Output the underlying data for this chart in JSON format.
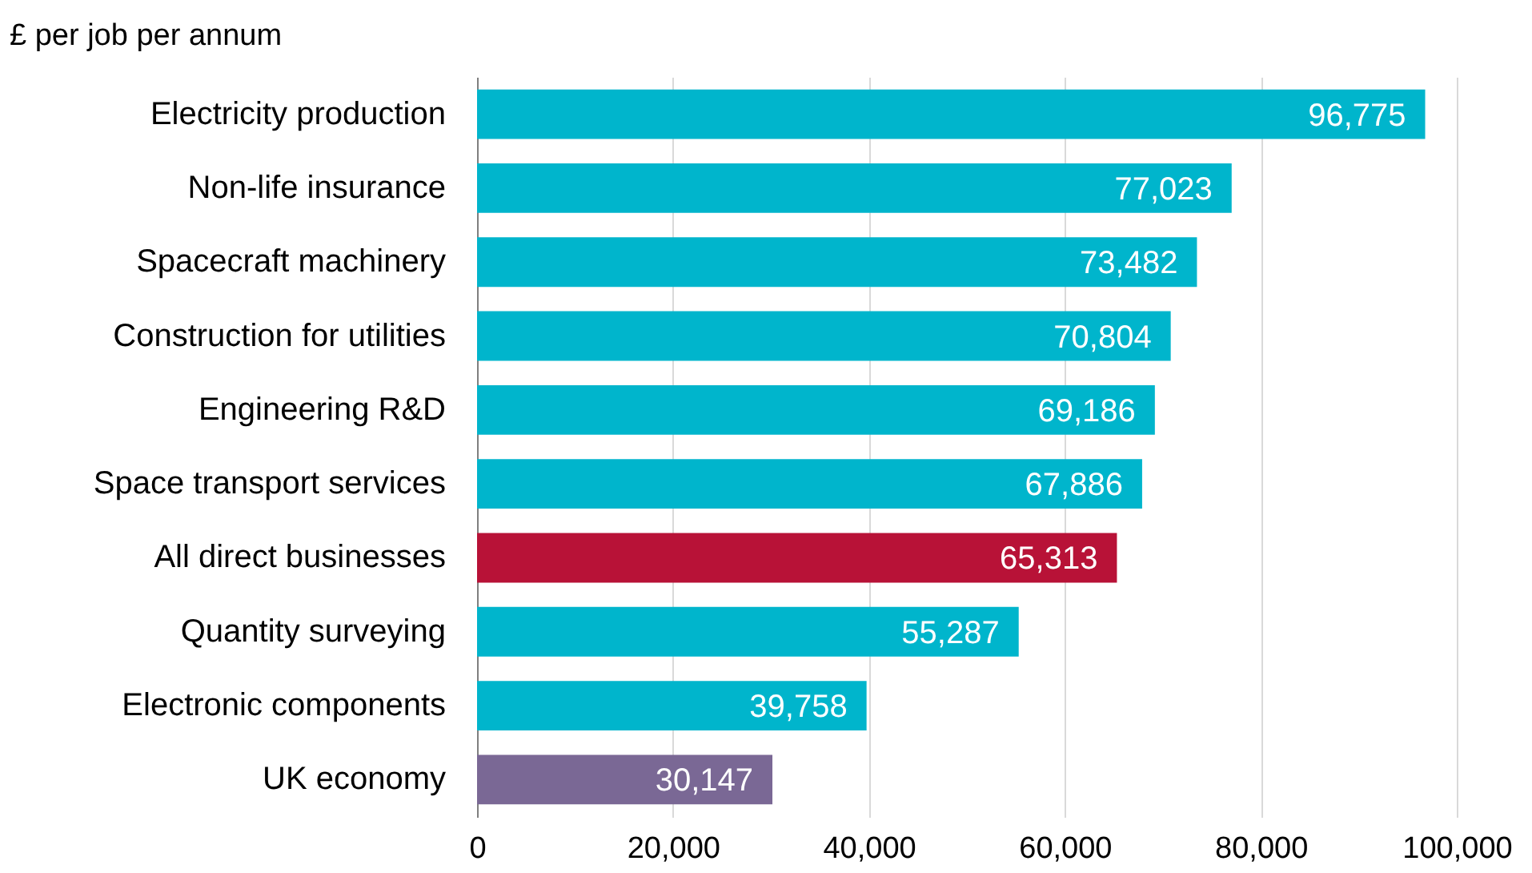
{
  "chart_data": {
    "type": "bar",
    "orientation": "horizontal",
    "title": "£ per job per annum",
    "categories": [
      "Electricity production",
      "Non-life insurance",
      "Spacecraft machinery",
      "Construction for utilities",
      "Engineering R&D",
      "Space transport services",
      "All direct businesses",
      "Quantity surveying",
      "Electronic components",
      "UK economy"
    ],
    "values": [
      96775,
      77023,
      73482,
      70804,
      69186,
      67886,
      65313,
      55287,
      39758,
      30147
    ],
    "value_labels": [
      "96,775",
      "77,023",
      "73,482",
      "70,804",
      "69,186",
      "67,886",
      "65,313",
      "55,287",
      "39,758",
      "30,147"
    ],
    "colors": [
      "#00b5cc",
      "#00b5cc",
      "#00b5cc",
      "#00b5cc",
      "#00b5cc",
      "#00b5cc",
      "#b81237",
      "#00b5cc",
      "#00b5cc",
      "#7a6895"
    ],
    "xlim": [
      0,
      100000
    ],
    "xticks": [
      {
        "value": 0,
        "label": "0"
      },
      {
        "value": 20000,
        "label": "20,000"
      },
      {
        "value": 40000,
        "label": "40,000"
      },
      {
        "value": 60000,
        "label": "60,000"
      },
      {
        "value": 80000,
        "label": "80,000"
      },
      {
        "value": 100000,
        "label": "100,000"
      }
    ],
    "grid": "x"
  }
}
